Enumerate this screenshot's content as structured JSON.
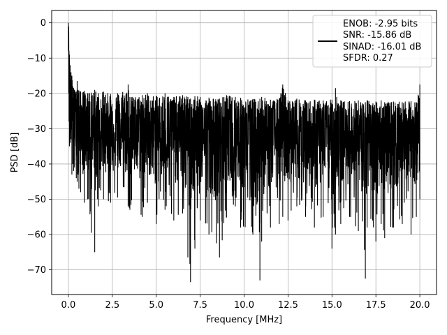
{
  "chart_data": {
    "type": "line",
    "title": "",
    "xlabel": "Frequency [MHz]",
    "ylabel": "PSD [dB]",
    "xlim": [
      -0.95,
      20.95
    ],
    "ylim": [
      -77,
      3.5
    ],
    "xticks": [
      0.0,
      2.5,
      5.0,
      7.5,
      10.0,
      12.5,
      15.0,
      17.5,
      20.0
    ],
    "xtick_labels": [
      "0.0",
      "2.5",
      "5.0",
      "7.5",
      "10.0",
      "12.5",
      "15.0",
      "17.5",
      "20.0"
    ],
    "yticks": [
      0,
      -10,
      -20,
      -30,
      -40,
      -50,
      -60,
      -70
    ],
    "ytick_labels": [
      "0",
      "−10",
      "−20",
      "−30",
      "−40",
      "−50",
      "−60",
      "−70"
    ],
    "grid": true,
    "legend_position": "top-right",
    "legend_lines": [
      "ENOB: -2.95 bits",
      "SNR: -15.86 dB",
      "SINAD: -16.01 dB",
      "SFDR: 0.27"
    ],
    "line_color": "#000000",
    "series": [
      {
        "name": "ENOB: -2.95 bits\nSNR: -15.86 dB\nSINAD: -16.01 dB\nSFDR: 0.27",
        "x": [
          0.0,
          0.02,
          0.04,
          0.06,
          0.1,
          0.15,
          0.2,
          0.25,
          0.3,
          0.35,
          0.45,
          0.5,
          0.55,
          0.6,
          0.7,
          0.9,
          1.1,
          1.3,
          1.5,
          1.7,
          2.0,
          2.4,
          2.8,
          3.4,
          3.5,
          4.2,
          4.5,
          5.0,
          5.5,
          6.0,
          6.5,
          6.8,
          6.95,
          7.2,
          7.5,
          8.0,
          8.6,
          9.0,
          9.5,
          9.8,
          10.5,
          10.9,
          11.0,
          11.5,
          12.0,
          12.2,
          12.5,
          13.0,
          13.5,
          14.0,
          14.5,
          15.0,
          15.2,
          15.5,
          16.0,
          16.5,
          16.9,
          17.0,
          17.5,
          17.8,
          18.0,
          18.5,
          19.0,
          19.5,
          19.8,
          20.0
        ],
        "upper": [
          0.0,
          -1.0,
          -8.0,
          -9.0,
          -12.0,
          -14.0,
          -15.0,
          -18.0,
          -18.5,
          -19.0,
          -19.5,
          -16.5,
          -19.0,
          -19.2,
          -19.5,
          -19.3,
          -20.0,
          -19.8,
          -19.0,
          -20.0,
          -19.5,
          -20.2,
          -20.0,
          -17.5,
          -21.0,
          -20.5,
          -20.0,
          -20.8,
          -20.0,
          -21.0,
          -20.5,
          -21.0,
          -21.5,
          -20.8,
          -21.0,
          -21.2,
          -21.5,
          -20.5,
          -21.0,
          -21.3,
          -21.6,
          -21.5,
          -21.0,
          -21.8,
          -21.5,
          -17.5,
          -22.0,
          -21.5,
          -22.0,
          -21.8,
          -22.0,
          -21.8,
          -18.5,
          -22.0,
          -22.2,
          -22.0,
          -22.5,
          -22.0,
          -22.3,
          -22.0,
          -22.5,
          -22.3,
          -22.5,
          -22.2,
          -22.5,
          -17.5
        ],
        "lower": [
          -8.0,
          -20.0,
          -28.0,
          -35.0,
          -34.0,
          -33.0,
          -43.0,
          -40.0,
          -42.0,
          -41.0,
          -44.0,
          -45.0,
          -43.0,
          -47.0,
          -48.0,
          -51.0,
          -50.0,
          -59.5,
          -65.0,
          -52.0,
          -50.0,
          -51.0,
          -49.5,
          -52.0,
          -53.0,
          -55.0,
          -51.0,
          -57.0,
          -53.0,
          -56.0,
          -54.0,
          -66.5,
          -73.5,
          -64.0,
          -56.0,
          -60.0,
          -66.5,
          -55.0,
          -52.0,
          -58.0,
          -60.0,
          -73.0,
          -62.0,
          -58.0,
          -57.0,
          -55.0,
          -56.0,
          -52.0,
          -55.0,
          -58.0,
          -55.0,
          -64.0,
          -60.0,
          -57.0,
          -55.0,
          -59.0,
          -72.5,
          -58.0,
          -62.0,
          -57.0,
          -61.0,
          -58.0,
          -57.0,
          -60.0,
          -55.0,
          -50.0
        ],
        "mean": [
          0.0,
          -5.0,
          -15.0,
          -20.0,
          -22.0,
          -24.0,
          -27.0,
          -28.0,
          -29.0,
          -29.5,
          -30.0,
          -30.0,
          -30.5,
          -31.0,
          -31.0,
          -31.5,
          -31.5,
          -32.0,
          -32.0,
          -32.0,
          -32.5,
          -32.5,
          -32.5,
          -32.5,
          -32.5,
          -32.5,
          -33.0,
          -33.0,
          -33.0,
          -33.0,
          -33.0,
          -33.0,
          -33.0,
          -33.0,
          -33.0,
          -33.0,
          -33.5,
          -33.5,
          -33.5,
          -33.5,
          -33.5,
          -33.5,
          -33.5,
          -33.5,
          -33.5,
          -33.5,
          -33.5,
          -34.0,
          -34.0,
          -34.0,
          -34.0,
          -34.0,
          -34.0,
          -34.0,
          -34.0,
          -34.0,
          -34.0,
          -34.0,
          -34.0,
          -34.0,
          -34.0,
          -34.0,
          -34.0,
          -34.0,
          -34.0,
          -34.0
        ]
      }
    ]
  }
}
